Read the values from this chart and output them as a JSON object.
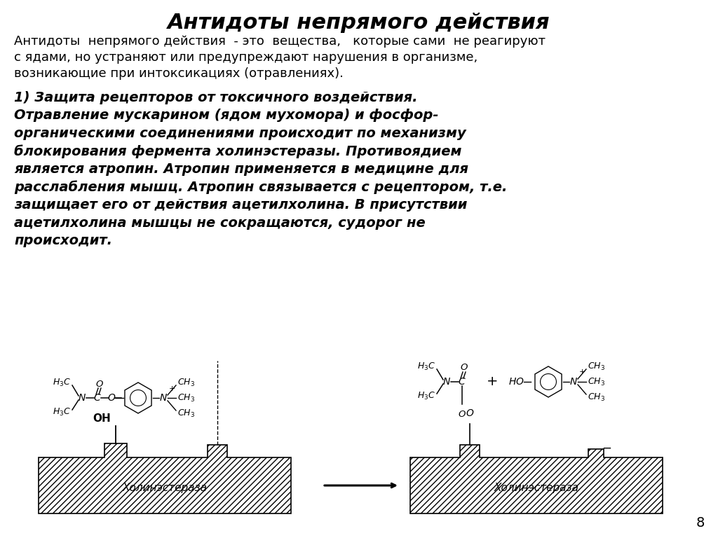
{
  "title": "Антидоты непрямого действия",
  "intro_text": "Антидоты  непрямого действия  - это  вещества,   которые сами  не реагируют\nс ядами, но устраняют или предупреждают нарушения в организме,\nвозникающие при интоксикациях (отравлениях).",
  "body_text": "1) Защита рецепторов от токсичного воздействия.\nОтравление мускарином (ядом мухомора) и фосфор-\nорганическими соединениями происходит по механизму\nблокирования фермента холинэстеразы. Противоядием\nявляется атропин. Атропин применяется в медицине для\nрасслабления мышц. Атропин связывается с рецептором, т.е.\nзащищает его от действия ацетилхолина. В присутствии\nацетилхолина мышцы не сокращаются, судорог не\nпроисходит.",
  "page_number": "8",
  "background_color": "#ffffff",
  "text_color": "#000000",
  "label_cholinesterase": "Холинэстераза"
}
